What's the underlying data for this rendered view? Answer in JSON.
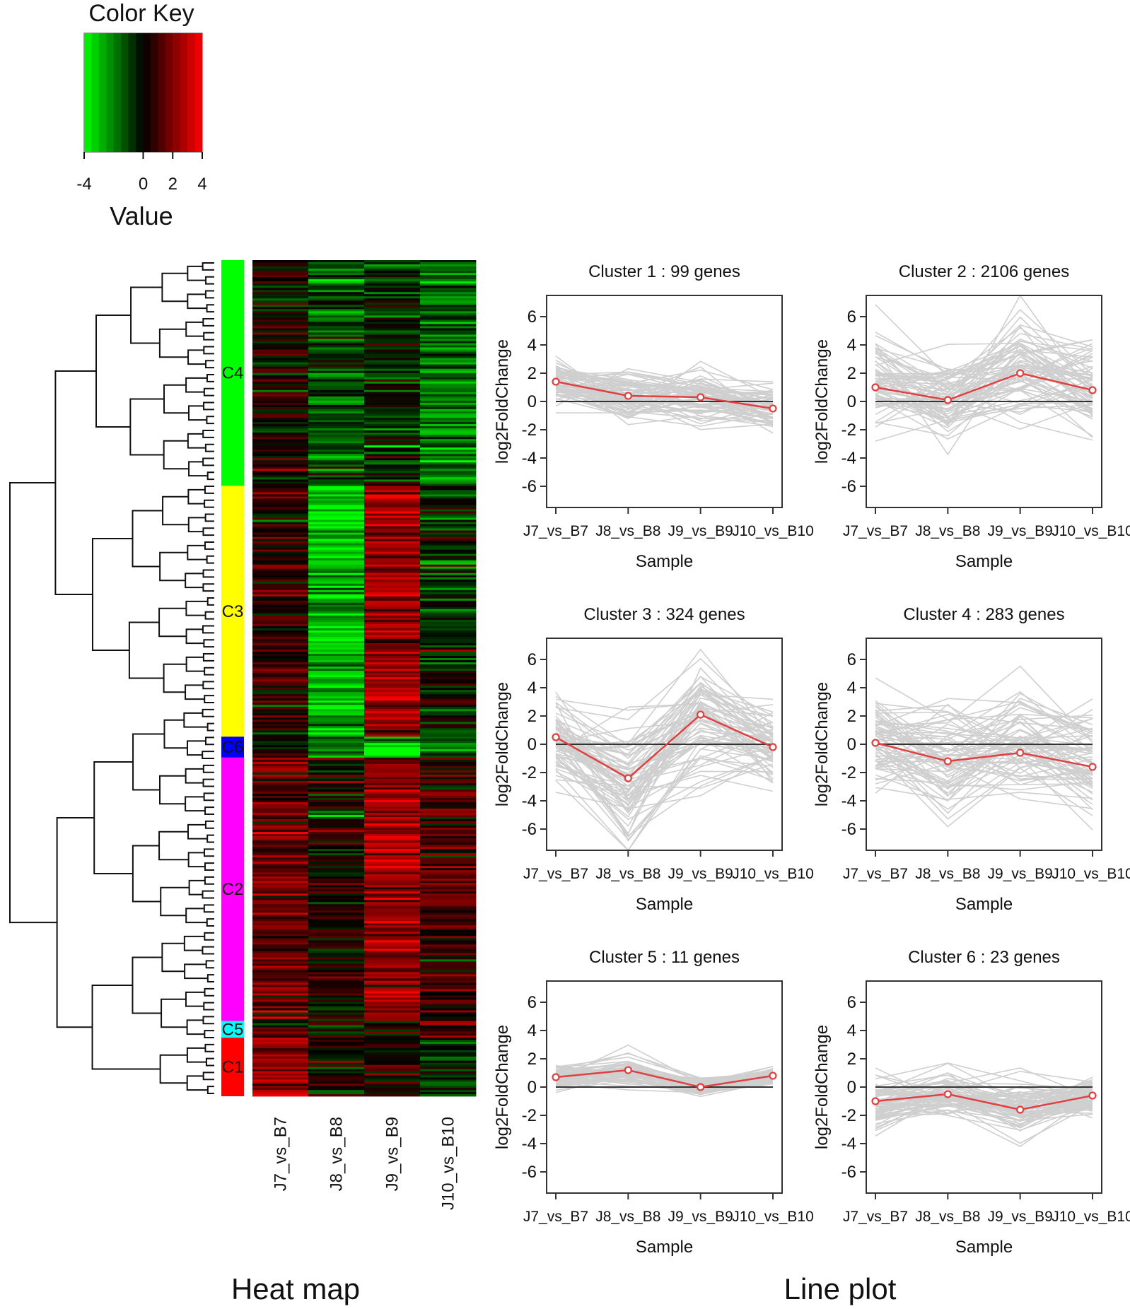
{
  "color_key": {
    "title": "Color Key",
    "value_label": "Value",
    "ticks": [
      "-4",
      "0",
      "2",
      "4"
    ],
    "tick_values": [
      -4,
      0,
      2,
      4
    ],
    "range": [
      -4,
      4
    ],
    "low_color": "#00ff00",
    "mid_color": "#000000",
    "high_color": "#ff0000"
  },
  "heatmap": {
    "columns": [
      "J7_vs_B7",
      "J8_vs_B8",
      "J9_vs_B9",
      "J10_vs_B10"
    ],
    "cluster_bar": [
      {
        "label": "C4",
        "color": "#00ff00",
        "share": 0.27
      },
      {
        "label": "C3",
        "color": "#ffff00",
        "share": 0.3
      },
      {
        "label": "C6",
        "color": "#0000ff",
        "share": 0.025
      },
      {
        "label": "C2",
        "color": "#ff00ff",
        "share": 0.315
      },
      {
        "label": "C5",
        "color": "#00ffff",
        "share": 0.02
      },
      {
        "label": "C1",
        "color": "#ff0000",
        "share": 0.07
      }
    ],
    "segment_means": [
      [
        0.3,
        -1.2,
        -0.6,
        -1.8
      ],
      [
        0.6,
        -3.0,
        2.5,
        -0.6
      ],
      [
        0.2,
        -2.0,
        -3.0,
        -1.5
      ],
      [
        1.5,
        0.4,
        2.4,
        0.9
      ],
      [
        1.2,
        0.2,
        0.1,
        1.8
      ],
      [
        1.8,
        0.2,
        0.0,
        -1.0
      ]
    ]
  },
  "labels": {
    "heat_map": "Heat map",
    "line_plot": "Line plot"
  },
  "chart_data": [
    {
      "type": "line",
      "title": "Cluster 1 : 99 genes",
      "xlabel": "Sample",
      "ylabel": "log2FoldChange",
      "categories": [
        "J7_vs_B7",
        "J8_vs_B8",
        "J9_vs_B9",
        "J10_vs_B10"
      ],
      "yticks": [
        6,
        4,
        2,
        0,
        -2,
        -4,
        -6
      ],
      "ylim": [
        -7.5,
        7.5
      ],
      "series": [
        {
          "name": "mean",
          "values": [
            1.4,
            0.4,
            0.3,
            -0.5
          ]
        }
      ],
      "spread": [
        1.2,
        1.0,
        1.0,
        0.9
      ],
      "color": "#e04040"
    },
    {
      "type": "line",
      "title": "Cluster 2 : 2106 genes",
      "xlabel": "Sample",
      "ylabel": "log2FoldChange",
      "categories": [
        "J7_vs_B7",
        "J8_vs_B8",
        "J9_vs_B9",
        "J10_vs_B10"
      ],
      "yticks": [
        6,
        4,
        2,
        0,
        -2,
        -4,
        -6
      ],
      "ylim": [
        -7.5,
        7.5
      ],
      "series": [
        {
          "name": "mean",
          "values": [
            1.0,
            0.1,
            2.0,
            0.8
          ]
        }
      ],
      "spread": [
        2.0,
        1.6,
        2.6,
        2.2
      ],
      "color": "#e04040"
    },
    {
      "type": "line",
      "title": "Cluster 3 : 324 genes",
      "xlabel": "Sample",
      "ylabel": "log2FoldChange",
      "categories": [
        "J7_vs_B7",
        "J8_vs_B8",
        "J9_vs_B9",
        "J10_vs_B10"
      ],
      "yticks": [
        6,
        4,
        2,
        0,
        -2,
        -4,
        -6
      ],
      "ylim": [
        -7.5,
        7.5
      ],
      "series": [
        {
          "name": "mean",
          "values": [
            0.5,
            -2.4,
            2.1,
            -0.2
          ]
        }
      ],
      "spread": [
        1.6,
        2.6,
        2.6,
        1.6
      ],
      "color": "#e04040"
    },
    {
      "type": "line",
      "title": "Cluster 4 : 283 genes",
      "xlabel": "Sample",
      "ylabel": "log2FoldChange",
      "categories": [
        "J7_vs_B7",
        "J8_vs_B8",
        "J9_vs_B9",
        "J10_vs_B10"
      ],
      "yticks": [
        6,
        4,
        2,
        0,
        -2,
        -4,
        -6
      ],
      "ylim": [
        -7.5,
        7.5
      ],
      "series": [
        {
          "name": "mean",
          "values": [
            0.1,
            -1.2,
            -0.6,
            -1.6
          ]
        }
      ],
      "spread": [
        2.0,
        2.2,
        2.2,
        2.6
      ],
      "color": "#e04040"
    },
    {
      "type": "line",
      "title": "Cluster 5 : 11 genes",
      "xlabel": "Sample",
      "ylabel": "log2FoldChange",
      "categories": [
        "J7_vs_B7",
        "J8_vs_B8",
        "J9_vs_B9",
        "J10_vs_B10"
      ],
      "yticks": [
        6,
        4,
        2,
        0,
        -2,
        -4,
        -6
      ],
      "ylim": [
        -7.5,
        7.5
      ],
      "series": [
        {
          "name": "mean",
          "values": [
            0.7,
            1.2,
            0.0,
            0.8
          ]
        }
      ],
      "spread": [
        0.5,
        0.6,
        0.4,
        0.4
      ],
      "color": "#e04040"
    },
    {
      "type": "line",
      "title": "Cluster 6 : 23 genes",
      "xlabel": "Sample",
      "ylabel": "log2FoldChange",
      "categories": [
        "J7_vs_B7",
        "J8_vs_B8",
        "J9_vs_B9",
        "J10_vs_B10"
      ],
      "yticks": [
        6,
        4,
        2,
        0,
        -2,
        -4,
        -6
      ],
      "ylim": [
        -7.5,
        7.5
      ],
      "series": [
        {
          "name": "mean",
          "values": [
            -1.0,
            -0.5,
            -1.6,
            -0.6
          ]
        }
      ],
      "spread": [
        1.2,
        0.9,
        1.3,
        0.8
      ],
      "color": "#e04040"
    }
  ]
}
